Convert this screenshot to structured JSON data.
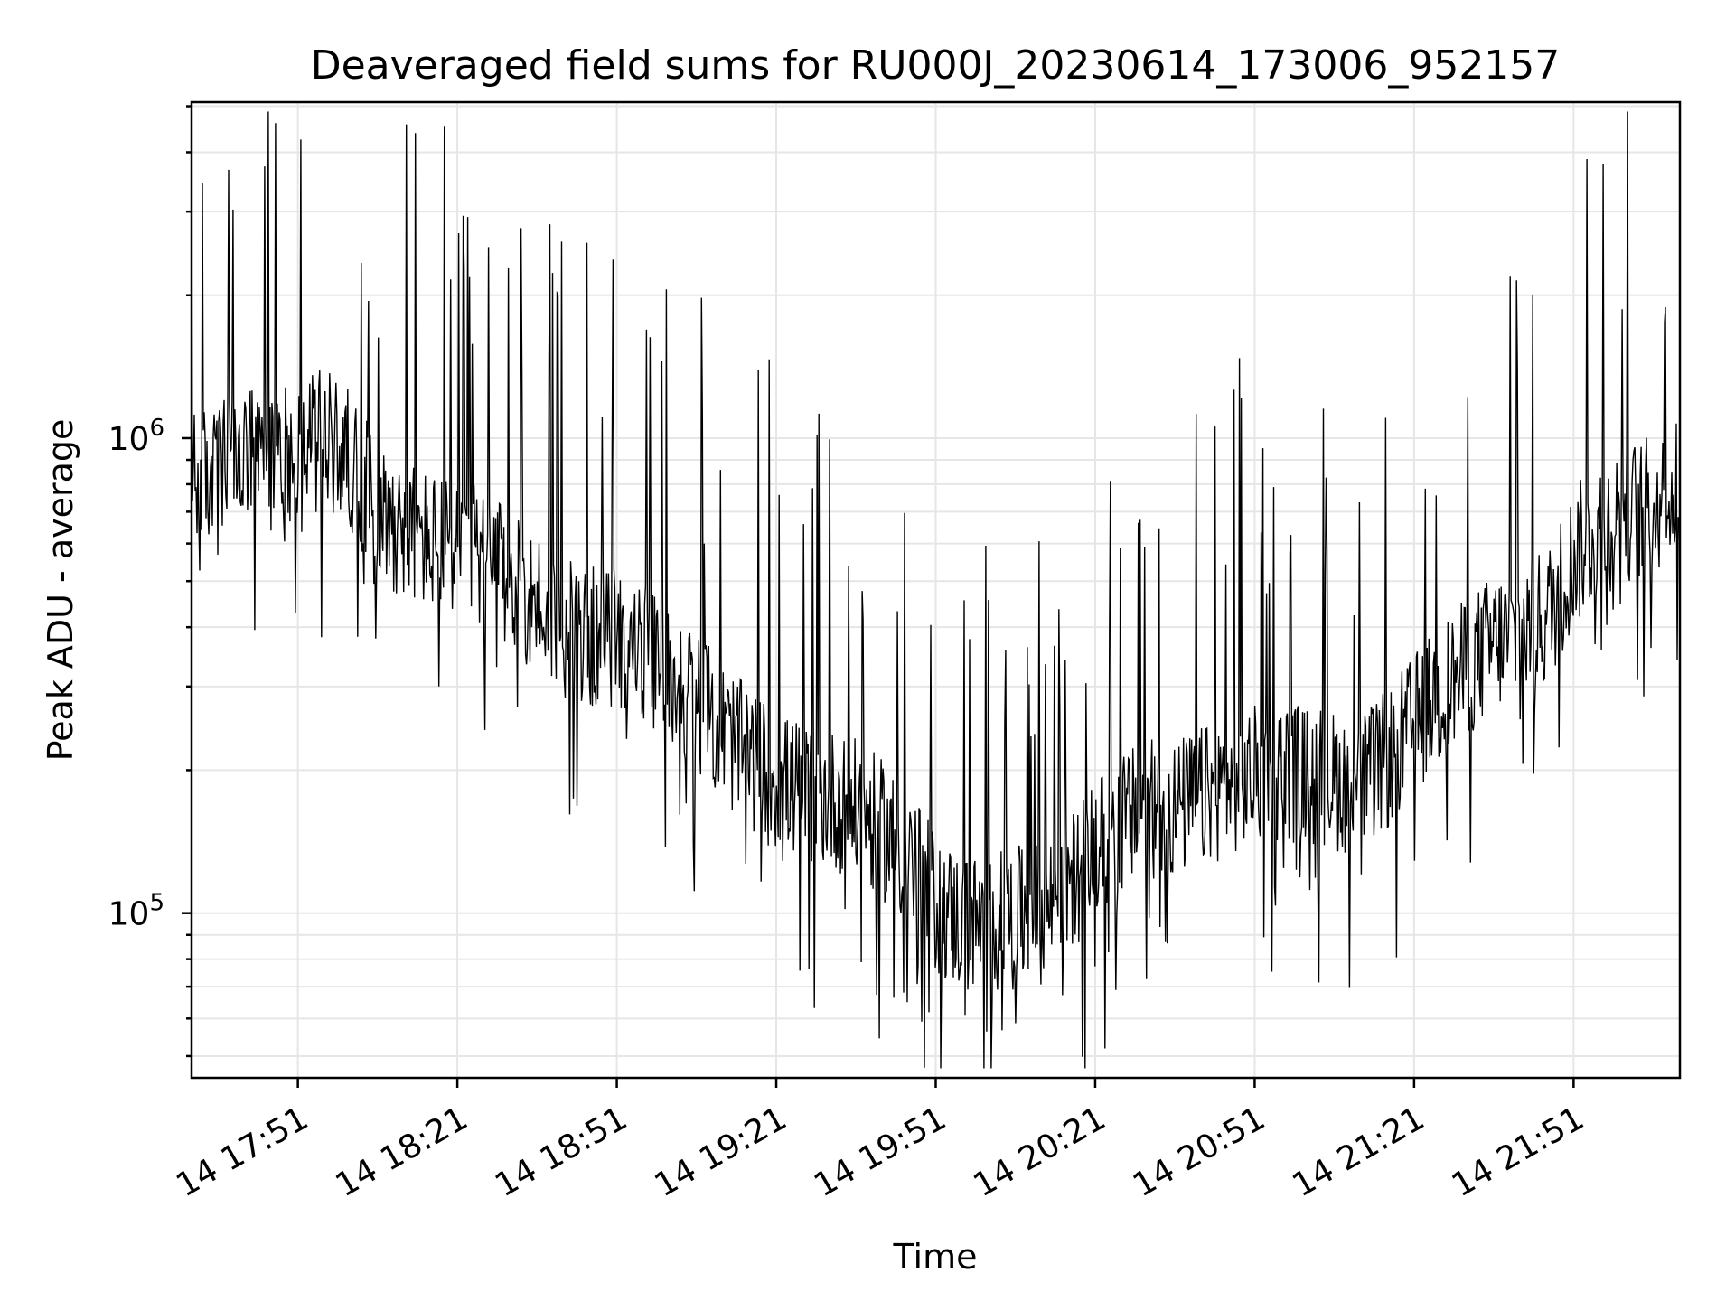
{
  "chart_data": {
    "type": "line",
    "title": "Deaveraged field sums for RU000J_20230614_173006_952157",
    "xlabel": "Time",
    "ylabel": "Peak ADU - average",
    "y_scale": "log",
    "grid": true,
    "line_color": "#000000",
    "x_range": [
      "14 17:31",
      "14 22:11"
    ],
    "ylim": [
      45000,
      5100000
    ],
    "x_ticks": [
      "14 17:51",
      "14 18:21",
      "14 18:51",
      "14 19:21",
      "14 19:51",
      "14 20:21",
      "14 20:51",
      "14 21:21",
      "14 21:51"
    ],
    "y_ticks": [
      {
        "value": 100000,
        "base": "10",
        "exp": "5"
      },
      {
        "value": 1000000,
        "base": "10",
        "exp": "6"
      }
    ],
    "series": [
      {
        "x": [
          "14 17:31",
          "14 17:36",
          "14 17:41",
          "14 17:46",
          "14 17:51",
          "14 17:56",
          "14 18:01",
          "14 18:06",
          "14 18:11",
          "14 18:16",
          "14 18:21",
          "14 18:26",
          "14 18:31",
          "14 18:36",
          "14 18:41",
          "14 18:46",
          "14 18:51",
          "14 18:56",
          "14 19:01",
          "14 19:06",
          "14 19:11",
          "14 19:16",
          "14 19:21",
          "14 19:26",
          "14 19:31",
          "14 19:36",
          "14 19:41",
          "14 19:46",
          "14 19:51",
          "14 19:56",
          "14 20:01",
          "14 20:06",
          "14 20:11",
          "14 20:16",
          "14 20:21",
          "14 20:26",
          "14 20:31",
          "14 20:36",
          "14 20:41",
          "14 20:46",
          "14 20:51",
          "14 20:56",
          "14 21:01",
          "14 21:06",
          "14 21:11",
          "14 21:16",
          "14 21:21",
          "14 21:26",
          "14 21:31",
          "14 21:36",
          "14 21:41",
          "14 21:46",
          "14 21:51",
          "14 21:56",
          "14 22:01",
          "14 22:06",
          "14 22:11"
        ],
        "y": [
          800000,
          850000,
          900000,
          900000,
          950000,
          1000000,
          900000,
          700000,
          650000,
          600000,
          600000,
          550000,
          500000,
          450000,
          400000,
          380000,
          380000,
          350000,
          320000,
          280000,
          240000,
          210000,
          190000,
          180000,
          175000,
          165000,
          150000,
          130000,
          105000,
          95000,
          95000,
          98000,
          100000,
          115000,
          135000,
          155000,
          165000,
          165000,
          175000,
          185000,
          195000,
          200000,
          195000,
          190000,
          185000,
          210000,
          250000,
          290000,
          330000,
          370000,
          390000,
          420000,
          560000,
          650000,
          700000,
          720000,
          780000
        ]
      }
    ]
  }
}
